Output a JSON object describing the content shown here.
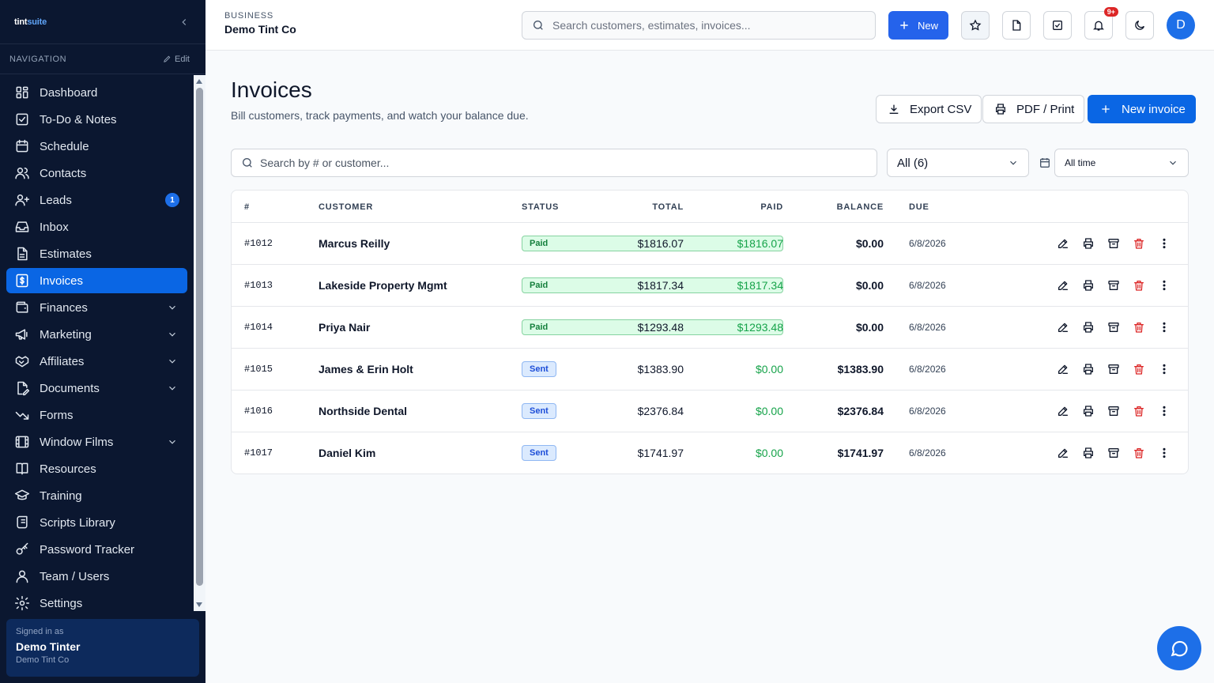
{
  "brand": {
    "logo_a": "tint",
    "logo_b": "suite"
  },
  "nav_header": {
    "label": "NAVIGATION",
    "edit_label": "Edit"
  },
  "sidebar": {
    "items": [
      {
        "label": "Dashboard",
        "icon": "dashboard-icon"
      },
      {
        "label": "To-Do & Notes",
        "icon": "checkbox-icon"
      },
      {
        "label": "Schedule",
        "icon": "calendar-icon"
      },
      {
        "label": "Contacts",
        "icon": "users-icon"
      },
      {
        "label": "Leads",
        "icon": "user-plus-icon",
        "badge": "1"
      },
      {
        "label": "Inbox",
        "icon": "inbox-icon"
      },
      {
        "label": "Estimates",
        "icon": "document-icon"
      },
      {
        "label": "Invoices",
        "icon": "invoice-icon",
        "active": true
      },
      {
        "label": "Finances",
        "icon": "wallet-icon",
        "expandable": true
      },
      {
        "label": "Marketing",
        "icon": "megaphone-icon",
        "expandable": true
      },
      {
        "label": "Affiliates",
        "icon": "handshake-icon",
        "expandable": true
      },
      {
        "label": "Documents",
        "icon": "file-edit-icon",
        "expandable": true
      },
      {
        "label": "Forms",
        "icon": "trend-icon"
      },
      {
        "label": "Window Films",
        "icon": "film-icon",
        "expandable": true
      },
      {
        "label": "Resources",
        "icon": "book-icon"
      },
      {
        "label": "Training",
        "icon": "graduation-cap-icon"
      },
      {
        "label": "Scripts Library",
        "icon": "scroll-icon"
      },
      {
        "label": "Password Tracker",
        "icon": "key-icon"
      },
      {
        "label": "Team / Users",
        "icon": "user-icon"
      },
      {
        "label": "Settings",
        "icon": "gear-icon"
      }
    ]
  },
  "signed_in": {
    "label": "Signed in as",
    "name": "Demo Tinter",
    "company": "Demo Tint Co"
  },
  "topbar": {
    "business_label": "BUSINESS",
    "business_name": "Demo Tint Co",
    "search_placeholder": "Search customers, estimates, invoices...",
    "new_label": "New",
    "notif_badge": "9+",
    "avatar_initial": "D"
  },
  "page": {
    "title": "Invoices",
    "subtitle": "Bill customers, track payments, and watch your balance due.",
    "export_label": "Export CSV",
    "print_label": "PDF / Print",
    "new_invoice_label": "New invoice"
  },
  "filters": {
    "search_placeholder": "Search by # or customer...",
    "status_value": "All (6)",
    "date_value": "All time"
  },
  "table": {
    "headers": {
      "num": "#",
      "customer": "CUSTOMER",
      "status": "STATUS",
      "total": "TOTAL",
      "paid": "PAID",
      "balance": "BALANCE",
      "due": "DUE"
    },
    "rows": [
      {
        "num": "#1012",
        "customer": "Marcus Reilly",
        "status": "Paid",
        "total": "$1816.07",
        "paid": "$1816.07",
        "balance": "$0.00",
        "due": "6/8/2026"
      },
      {
        "num": "#1013",
        "customer": "Lakeside Property Mgmt",
        "status": "Paid",
        "total": "$1817.34",
        "paid": "$1817.34",
        "balance": "$0.00",
        "due": "6/8/2026"
      },
      {
        "num": "#1014",
        "customer": "Priya Nair",
        "status": "Paid",
        "total": "$1293.48",
        "paid": "$1293.48",
        "balance": "$0.00",
        "due": "6/8/2026"
      },
      {
        "num": "#1015",
        "customer": "James & Erin Holt",
        "status": "Sent",
        "total": "$1383.90",
        "paid": "$0.00",
        "balance": "$1383.90",
        "due": "6/8/2026"
      },
      {
        "num": "#1016",
        "customer": "Northside Dental",
        "status": "Sent",
        "total": "$2376.84",
        "paid": "$0.00",
        "balance": "$2376.84",
        "due": "6/8/2026"
      },
      {
        "num": "#1017",
        "customer": "Daniel Kim",
        "status": "Sent",
        "total": "$1741.97",
        "paid": "$0.00",
        "balance": "$1741.97",
        "due": "6/8/2026"
      }
    ]
  },
  "colors": {
    "sidebar_bg": "#0b1730",
    "accent": "#0a66e4",
    "paid_green": "#16a34a",
    "danger": "#dc2626"
  }
}
